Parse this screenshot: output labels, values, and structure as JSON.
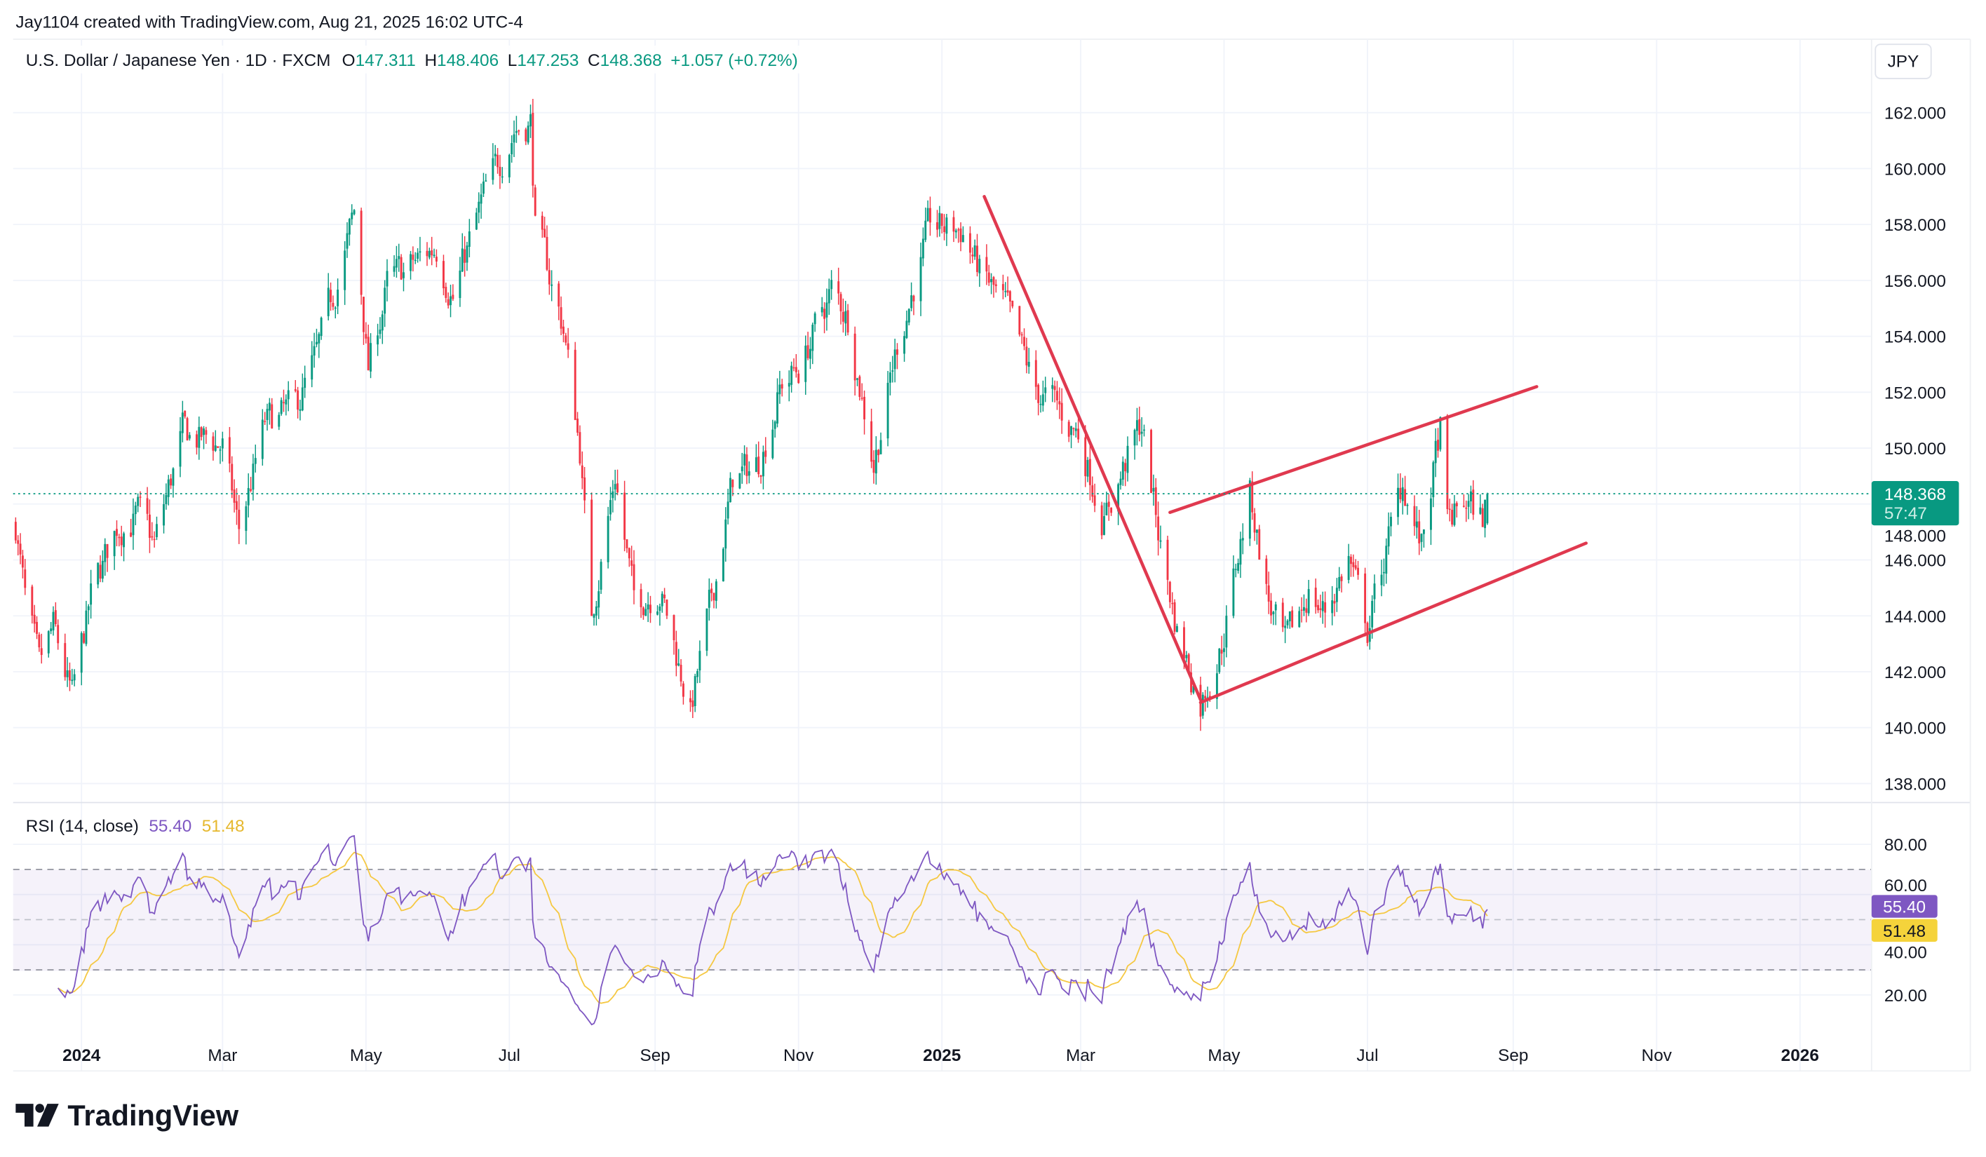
{
  "attribution": "Jay1104 created with TradingView.com, Aug 21, 2025 16:02 UTC-4",
  "legend": {
    "symbol": "U.S. Dollar / Japanese Yen · 1D · FXCM",
    "o_label": "O",
    "o": "147.311",
    "h_label": "H",
    "h": "148.406",
    "l_label": "L",
    "l": "147.253",
    "c_label": "C",
    "c": "148.368",
    "change": "+1.057 (+0.72%)"
  },
  "currency_button": "JPY",
  "last_price": {
    "price": "148.368",
    "countdown": "57:47"
  },
  "rsi_legend": {
    "label": "RSI (14, close)",
    "rsi": "55.40",
    "ma": "51.48"
  },
  "brand": "TradingView",
  "colors": {
    "up": "#089981",
    "down": "#f23645",
    "trendline": "#e0394f",
    "rsi": "#7e57c2",
    "rsi_ma": "#f5c842",
    "last_price": "#089981"
  },
  "chart_data": {
    "type": "candlestick",
    "title": "U.S. Dollar / Japanese Yen · 1D · FXCM",
    "price_ticks": [
      "162.000",
      "160.000",
      "158.000",
      "156.000",
      "154.000",
      "152.000",
      "150.000",
      "148.000",
      "146.000",
      "144.000",
      "142.000",
      "140.000",
      "138.000"
    ],
    "price_tick_values": [
      162,
      160,
      158,
      156,
      154,
      152,
      150,
      148,
      146,
      144,
      142,
      140,
      138
    ],
    "ylim": [
      136.8,
      163.0
    ],
    "time_ticks": [
      {
        "label": "2024",
        "date": "2024-01-01",
        "bold": true
      },
      {
        "label": "Mar",
        "date": "2024-03-01"
      },
      {
        "label": "May",
        "date": "2024-05-01"
      },
      {
        "label": "Jul",
        "date": "2024-07-01"
      },
      {
        "label": "Sep",
        "date": "2024-09-01"
      },
      {
        "label": "Nov",
        "date": "2024-11-01"
      },
      {
        "label": "2025",
        "date": "2025-01-01",
        "bold": true
      },
      {
        "label": "Mar",
        "date": "2025-03-01"
      },
      {
        "label": "May",
        "date": "2025-05-01"
      },
      {
        "label": "Jul",
        "date": "2025-07-01"
      },
      {
        "label": "Sep",
        "date": "2025-09-01"
      },
      {
        "label": "Nov",
        "date": "2025-11-01"
      },
      {
        "label": "2026",
        "date": "2026-01-01",
        "bold": true
      }
    ],
    "close_path": [
      [
        "2023-12-04",
        147.3
      ],
      [
        "2023-12-08",
        144.5
      ],
      [
        "2023-12-14",
        142.0
      ],
      [
        "2023-12-20",
        143.5
      ],
      [
        "2023-12-28",
        141.0
      ],
      [
        "2024-01-05",
        144.6
      ],
      [
        "2024-01-16",
        147.2
      ],
      [
        "2024-01-25",
        147.6
      ],
      [
        "2024-02-01",
        146.5
      ],
      [
        "2024-02-13",
        150.5
      ],
      [
        "2024-03-01",
        150.1
      ],
      [
        "2024-03-08",
        147.0
      ],
      [
        "2024-03-19",
        150.8
      ],
      [
        "2024-04-01",
        151.4
      ],
      [
        "2024-04-10",
        153.2
      ],
      [
        "2024-04-26",
        158.3
      ],
      [
        "2024-05-02",
        152.8
      ],
      [
        "2024-05-10",
        155.8
      ],
      [
        "2024-05-20",
        156.5
      ],
      [
        "2024-05-31",
        157.2
      ],
      [
        "2024-06-07",
        155.5
      ],
      [
        "2024-06-20",
        158.9
      ],
      [
        "2024-07-03",
        161.5
      ],
      [
        "2024-07-10",
        161.7
      ],
      [
        "2024-07-12",
        158.0
      ],
      [
        "2024-07-24",
        154.3
      ],
      [
        "2024-07-31",
        150.0
      ],
      [
        "2024-08-05",
        144.0
      ],
      [
        "2024-08-15",
        149.1
      ],
      [
        "2024-08-23",
        144.5
      ],
      [
        "2024-09-03",
        145.0
      ],
      [
        "2024-09-16",
        140.6
      ],
      [
        "2024-09-25",
        144.5
      ],
      [
        "2024-10-04",
        148.8
      ],
      [
        "2024-10-15",
        149.5
      ],
      [
        "2024-10-25",
        152.3
      ],
      [
        "2024-11-01",
        152.8
      ],
      [
        "2024-11-15",
        155.6
      ],
      [
        "2024-11-22",
        154.7
      ],
      [
        "2024-12-03",
        149.5
      ],
      [
        "2024-12-13",
        153.7
      ],
      [
        "2024-12-27",
        157.9
      ],
      [
        "2025-01-10",
        157.8
      ],
      [
        "2025-01-17",
        156.3
      ],
      [
        "2025-01-28",
        155.0
      ],
      [
        "2025-02-10",
        152.0
      ],
      [
        "2025-02-17",
        151.6
      ],
      [
        "2025-02-28",
        150.5
      ],
      [
        "2025-03-11",
        147.5
      ],
      [
        "2025-03-27",
        150.9
      ],
      [
        "2025-04-04",
        146.5
      ],
      [
        "2025-04-11",
        143.5
      ],
      [
        "2025-04-21",
        140.9
      ],
      [
        "2025-04-30",
        143.0
      ],
      [
        "2025-05-12",
        148.4
      ],
      [
        "2025-05-20",
        144.5
      ],
      [
        "2025-05-27",
        142.8
      ],
      [
        "2025-06-06",
        144.9
      ],
      [
        "2025-06-13",
        144.1
      ],
      [
        "2025-06-23",
        146.1
      ],
      [
        "2025-07-01",
        143.5
      ],
      [
        "2025-07-16",
        148.8
      ],
      [
        "2025-07-24",
        146.4
      ],
      [
        "2025-08-01",
        150.7
      ],
      [
        "2025-08-04",
        147.2
      ],
      [
        "2025-08-12",
        148.1
      ],
      [
        "2025-08-19",
        147.5
      ],
      [
        "2025-08-21",
        148.368
      ]
    ],
    "last_ohlc": {
      "open": 147.311,
      "high": 148.406,
      "low": 147.253,
      "close": 148.368
    },
    "trendlines": [
      {
        "name": "falling-trendline",
        "from": [
          "2025-01-19",
          159.0
        ],
        "to": [
          "2025-04-21",
          141.0
        ]
      },
      {
        "name": "channel-upper",
        "from": [
          "2025-04-08",
          147.7
        ],
        "to": [
          "2025-09-11",
          152.2
        ]
      },
      {
        "name": "channel-lower",
        "from": [
          "2025-04-21",
          140.9
        ],
        "to": [
          "2025-10-02",
          146.6
        ]
      }
    ],
    "rsi": {
      "period": 14,
      "ma_period": 14,
      "ticks": [
        "80.00",
        "60.00",
        "40.00",
        "20.00"
      ],
      "tick_values": [
        80,
        60,
        40,
        20
      ],
      "band": [
        30,
        70
      ],
      "middle": 50,
      "last_rsi": 55.4,
      "last_ma": 51.48
    }
  }
}
